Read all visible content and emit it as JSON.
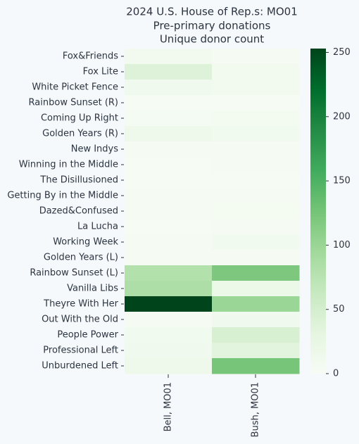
{
  "chart_data": {
    "type": "heatmap",
    "title": [
      "2024 U.S. House of Rep.s: MO01",
      "Pre-primary donations",
      "Unique donor count"
    ],
    "x_categories": [
      "Bell, MO01",
      "Bush, MO01"
    ],
    "y_categories": [
      "Fox&Friends",
      "Fox Lite",
      "White Picket Fence",
      "Rainbow Sunset (R)",
      "Coming Up Right",
      "Golden Years (R)",
      "New Indys",
      "Winning in the Middle",
      "The Disillusioned",
      "Getting By in the Middle",
      "Dazed&Confused",
      "La Lucha",
      "Working Week",
      "Golden Years (L)",
      "Rainbow Sunset (L)",
      "Vanilla Libs",
      "Theyre With Her",
      "Out With the Old",
      "People Power",
      "Professional Left",
      "Unburdened Left"
    ],
    "values": [
      [
        8,
        3
      ],
      [
        40,
        8
      ],
      [
        12,
        8
      ],
      [
        2,
        2
      ],
      [
        5,
        7
      ],
      [
        15,
        10
      ],
      [
        3,
        4
      ],
      [
        2,
        3
      ],
      [
        1,
        1
      ],
      [
        3,
        3
      ],
      [
        4,
        6
      ],
      [
        2,
        3
      ],
      [
        4,
        10
      ],
      [
        3,
        3
      ],
      [
        80,
        120
      ],
      [
        85,
        20
      ],
      [
        253,
        100
      ],
      [
        3,
        12
      ],
      [
        10,
        45
      ],
      [
        12,
        35
      ],
      [
        15,
        125
      ]
    ],
    "colorscale": [
      "#f7fcf5",
      "#e5f5e0",
      "#c7e9c0",
      "#a1d99b",
      "#74c476",
      "#41ab5d",
      "#238b45",
      "#006d2c",
      "#00441b"
    ],
    "zlim": [
      0,
      253
    ],
    "zticks": [
      0,
      50,
      100,
      150,
      200,
      250
    ]
  }
}
